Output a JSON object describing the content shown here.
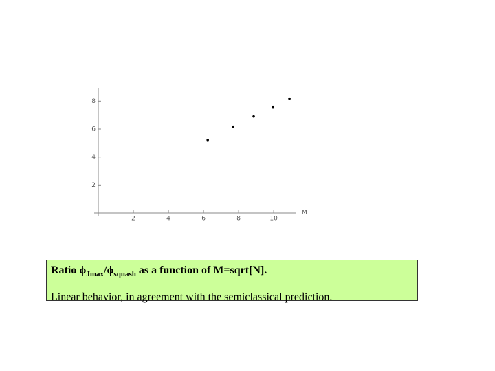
{
  "chart_data": {
    "type": "scatter",
    "x": [
      6.24,
      7.69,
      8.86,
      9.96,
      10.9
    ],
    "y": [
      5.22,
      6.16,
      6.9,
      7.59,
      8.18
    ],
    "xlabel": "M",
    "xlim": [
      0,
      11.25
    ],
    "ylim": [
      0,
      8.95
    ],
    "xticks": [
      2,
      4,
      6,
      8,
      10
    ],
    "yticks": [
      2,
      4,
      6,
      8
    ],
    "color": "#000000"
  },
  "caption": {
    "prefix": "Ratio ",
    "phi1": "ϕ",
    "sub1": "Jmax",
    "slash": "/",
    "phi2": "ϕ",
    "sub2": "squash",
    "suffix": " as a function of M=sqrt[N].",
    "line2": "Linear behavior, in agreement with the semiclassical prediction."
  }
}
